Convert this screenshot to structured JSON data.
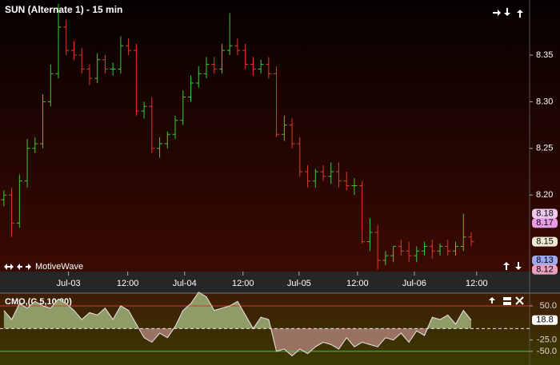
{
  "title": "SUN (Alternate 1) - 15 min",
  "brand": "MotiveWave",
  "chart_data": [
    {
      "type": "ohlc",
      "xlim": [
        -0.5,
        67.5
      ],
      "xticks": [
        {
          "value": 8.3,
          "label": "Jul-03"
        },
        {
          "value": 15.9,
          "label": "12:00"
        },
        {
          "value": 23.2,
          "label": "Jul-04"
        },
        {
          "value": 30.7,
          "label": "12:00"
        },
        {
          "value": 37.9,
          "label": "Jul-05"
        },
        {
          "value": 45.4,
          "label": "12:00"
        },
        {
          "value": 52.7,
          "label": "Jul-06"
        },
        {
          "value": 60.7,
          "label": "12:00"
        }
      ],
      "ylim": [
        8.118,
        8.409
      ],
      "yticks": [
        {
          "value": 8.2,
          "label": "8.20"
        },
        {
          "value": 8.25,
          "label": "8.25"
        },
        {
          "value": 8.3,
          "label": "8.30"
        },
        {
          "value": 8.35,
          "label": "8.35"
        }
      ],
      "up_color": "#3ccc3c",
      "down_color": "#e03a2a",
      "open": [
        8.195,
        8.2,
        8.17,
        8.215,
        8.25,
        8.255,
        8.3,
        8.33,
        8.38,
        8.355,
        8.35,
        8.335,
        8.325,
        8.345,
        8.335,
        8.335,
        8.36,
        8.355,
        8.29,
        8.295,
        8.25,
        8.255,
        8.265,
        8.28,
        8.305,
        8.32,
        8.33,
        8.34,
        8.335,
        8.355,
        8.36,
        8.355,
        8.34,
        8.335,
        8.34,
        8.33,
        8.265,
        8.275,
        8.255,
        8.225,
        8.215,
        8.225,
        8.22,
        8.225,
        8.215,
        8.21,
        8.21,
        8.15,
        8.16,
        8.13,
        8.135,
        8.145,
        8.14,
        8.135,
        8.14,
        8.145,
        8.14,
        8.145,
        8.14,
        8.145,
        8.155
      ],
      "high": [
        8.205,
        8.208,
        8.222,
        8.26,
        8.262,
        8.308,
        8.34,
        8.405,
        8.388,
        8.365,
        8.358,
        8.34,
        8.352,
        8.35,
        8.342,
        8.37,
        8.368,
        8.362,
        8.3,
        8.305,
        8.262,
        8.268,
        8.285,
        8.312,
        8.328,
        8.338,
        8.348,
        8.348,
        8.362,
        8.395,
        8.368,
        8.362,
        8.348,
        8.345,
        8.348,
        8.338,
        8.285,
        8.282,
        8.262,
        8.232,
        8.228,
        8.232,
        8.235,
        8.235,
        8.225,
        8.218,
        8.215,
        8.175,
        8.168,
        8.14,
        8.145,
        8.152,
        8.15,
        8.145,
        8.15,
        8.152,
        8.148,
        8.152,
        8.15,
        8.18,
        8.16
      ],
      "low": [
        8.188,
        8.155,
        8.165,
        8.208,
        8.245,
        8.25,
        8.295,
        8.325,
        8.35,
        8.345,
        8.33,
        8.318,
        8.32,
        8.33,
        8.328,
        8.33,
        8.35,
        8.285,
        8.282,
        8.245,
        8.24,
        8.25,
        8.26,
        8.275,
        8.3,
        8.315,
        8.325,
        8.33,
        8.33,
        8.35,
        8.35,
        8.335,
        8.328,
        8.33,
        8.325,
        8.262,
        8.258,
        8.25,
        8.22,
        8.208,
        8.208,
        8.215,
        8.212,
        8.208,
        8.205,
        8.2,
        8.148,
        8.14,
        8.12,
        8.125,
        8.128,
        8.135,
        8.128,
        8.128,
        8.135,
        8.132,
        8.135,
        8.135,
        8.135,
        8.14,
        8.145
      ],
      "close": [
        8.2,
        8.17,
        8.215,
        8.25,
        8.255,
        8.3,
        8.33,
        8.38,
        8.355,
        8.35,
        8.335,
        8.325,
        8.345,
        8.335,
        8.335,
        8.36,
        8.355,
        8.29,
        8.295,
        8.25,
        8.255,
        8.265,
        8.28,
        8.305,
        8.32,
        8.33,
        8.34,
        8.335,
        8.355,
        8.36,
        8.355,
        8.34,
        8.335,
        8.34,
        8.33,
        8.265,
        8.275,
        8.255,
        8.225,
        8.215,
        8.225,
        8.22,
        8.225,
        8.215,
        8.21,
        8.21,
        8.15,
        8.16,
        8.13,
        8.135,
        8.145,
        8.14,
        8.135,
        8.14,
        8.145,
        8.14,
        8.145,
        8.14,
        8.145,
        8.155,
        8.15
      ],
      "price_markers": [
        {
          "value": 8.18,
          "color": "#ecc8ec"
        },
        {
          "value": 8.17,
          "color": "#e89ae6"
        },
        {
          "value": 8.15,
          "color": "#f0ead2"
        },
        {
          "value": 8.13,
          "color": "#9ca8f0"
        },
        {
          "value": 8.12,
          "color": "#eaa0c0"
        }
      ]
    },
    {
      "type": "area",
      "title": "CMO,(C,5,10,20)",
      "xlim": [
        -0.5,
        67.5
      ],
      "ylim": [
        -80,
        78
      ],
      "yticks": [
        {
          "value": 50,
          "label": "50.0"
        },
        {
          "value": -25,
          "label": "-25.0"
        },
        {
          "value": -50,
          "label": "-50.0"
        }
      ],
      "ref_lines": [
        {
          "value": 50,
          "color": "#e03030"
        },
        {
          "value": 0,
          "color": "#e8e8e8"
        },
        {
          "value": -50,
          "color": "#40c040"
        }
      ],
      "color": "#e8e8e8",
      "above_color": "#8f9c68",
      "below_color": "#9a7262",
      "values": [
        40,
        20,
        55,
        45,
        60,
        50,
        45,
        65,
        55,
        40,
        20,
        35,
        30,
        45,
        20,
        50,
        40,
        10,
        -20,
        -30,
        -10,
        -20,
        5,
        40,
        55,
        80,
        70,
        40,
        45,
        50,
        60,
        30,
        0,
        25,
        20,
        -50,
        -45,
        -60,
        -45,
        -55,
        -40,
        -30,
        -35,
        -45,
        -20,
        -40,
        -30,
        -35,
        -40,
        -20,
        -25,
        -10,
        -30,
        -5,
        -15,
        25,
        20,
        30,
        10,
        40,
        18.8
      ]
    }
  ]
}
